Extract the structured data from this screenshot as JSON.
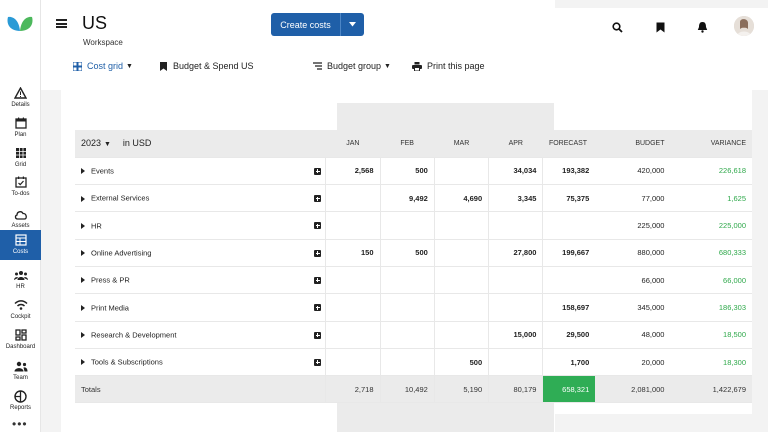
{
  "app": {
    "title": "US",
    "subtitle": "Workspace",
    "create_button": "Create costs"
  },
  "sidebar": {
    "items": [
      {
        "label": "Details",
        "icon": "warning-triangle-icon"
      },
      {
        "label": "Plan",
        "icon": "calendar-icon"
      },
      {
        "label": "Grid",
        "icon": "grid-icon"
      },
      {
        "label": "To-dos",
        "icon": "checklist-icon"
      },
      {
        "label": "Assets",
        "icon": "cloud-icon"
      },
      {
        "label": "Costs",
        "icon": "costs-sheet-icon",
        "active": true
      },
      {
        "label": "HR",
        "icon": "people-icon"
      },
      {
        "label": "Cockpit",
        "icon": "signal-icon"
      },
      {
        "label": "Dashboard",
        "icon": "dashboard-icon"
      },
      {
        "label": "Team",
        "icon": "team-icon"
      },
      {
        "label": "Reports",
        "icon": "reports-icon"
      }
    ],
    "more": "•••"
  },
  "toolbar": {
    "cost_grid": "Cost grid",
    "budget_spend": "Budget & Spend US",
    "budget_group": "Budget group",
    "print": "Print this page"
  },
  "table": {
    "year": "2023",
    "currency": "in USD",
    "columns": [
      "JAN",
      "FEB",
      "MAR",
      "APR",
      "FORECAST",
      "BUDGET",
      "VARIANCE"
    ],
    "rows": [
      {
        "name": "Events",
        "jan": "2,568",
        "feb": "500",
        "mar": "",
        "apr": "34,034",
        "forecast": "193,382",
        "budget": "420,000",
        "variance": "226,618"
      },
      {
        "name": "External Services",
        "jan": "",
        "feb": "9,492",
        "mar": "4,690",
        "apr": "3,345",
        "forecast": "75,375",
        "budget": "77,000",
        "variance": "1,625"
      },
      {
        "name": "HR",
        "jan": "",
        "feb": "",
        "mar": "",
        "apr": "",
        "forecast": "",
        "budget": "225,000",
        "variance": "225,000"
      },
      {
        "name": "Online Advertising",
        "jan": "150",
        "feb": "500",
        "mar": "",
        "apr": "27,800",
        "forecast": "199,667",
        "budget": "880,000",
        "variance": "680,333"
      },
      {
        "name": "Press & PR",
        "jan": "",
        "feb": "",
        "mar": "",
        "apr": "",
        "forecast": "",
        "budget": "66,000",
        "variance": "66,000"
      },
      {
        "name": "Print Media",
        "jan": "",
        "feb": "",
        "mar": "",
        "apr": "",
        "forecast": "158,697",
        "budget": "345,000",
        "variance": "186,303"
      },
      {
        "name": "Research & Development",
        "jan": "",
        "feb": "",
        "mar": "",
        "apr": "15,000",
        "forecast": "29,500",
        "budget": "48,000",
        "variance": "18,500"
      },
      {
        "name": "Tools & Subscriptions",
        "jan": "",
        "feb": "",
        "mar": "500",
        "apr": "",
        "forecast": "1,700",
        "budget": "20,000",
        "variance": "18,300"
      }
    ],
    "totals": {
      "label": "Totals",
      "jan": "2,718",
      "feb": "10,492",
      "mar": "5,190",
      "apr": "80,179",
      "forecast": "658,321",
      "budget": "2,081,000",
      "variance": "1,422,679"
    }
  },
  "colors": {
    "brand": "#1f5fa8",
    "positive": "#2ea84a",
    "forecast_total": "#2fad55"
  }
}
